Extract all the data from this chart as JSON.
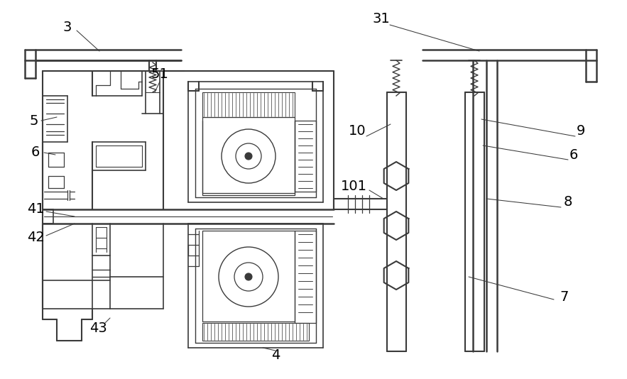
{
  "bg_color": "#ffffff",
  "line_color": "#3a3a3a",
  "fig_width": 8.83,
  "fig_height": 5.34,
  "dpi": 100
}
